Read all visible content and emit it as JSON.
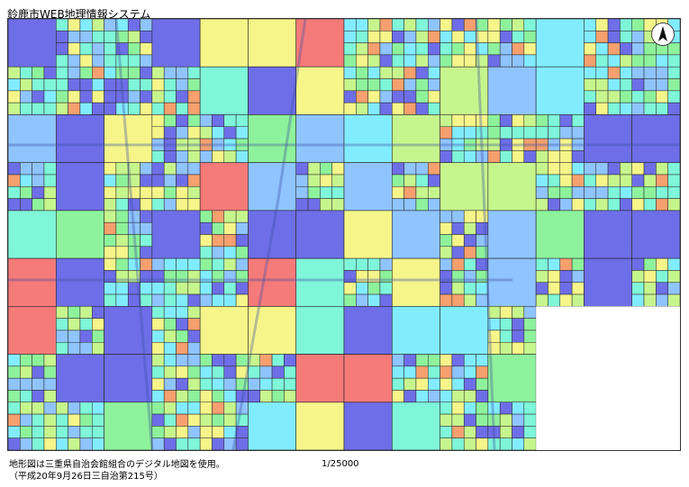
{
  "title": "鈴鹿市WEB地理情報システム",
  "scale": "1/25000",
  "footer": {
    "line1": "地形図は三重県自治会館組合のデジタル地図を使用。",
    "line2": "（平成20年9月26日三自治第215号）"
  },
  "icons": {
    "north_arrow": "north-arrow-icon"
  },
  "colors": {
    "blue": "#6e6ee8",
    "light_blue": "#8fc4ff",
    "cyan": "#82ecff",
    "aqua": "#7ff5d9",
    "green": "#8ef29c",
    "yellow_green": "#c7f58d",
    "yellow": "#f5f58a",
    "orange": "#f5a06e",
    "red": "#f57a7a"
  }
}
